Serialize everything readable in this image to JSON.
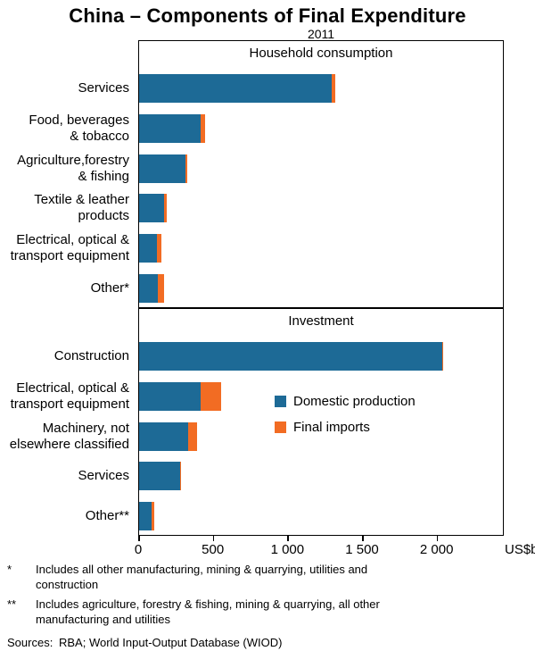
{
  "title": "China – Components of Final Expenditure",
  "subtitle": "2011",
  "unit_label": "US$b",
  "colors": {
    "domestic": "#1d6a96",
    "imports": "#f26c23"
  },
  "legend": [
    {
      "label": "Domestic production",
      "key": "domestic"
    },
    {
      "label": "Final imports",
      "key": "imports"
    }
  ],
  "chart_data": {
    "type": "bar",
    "orientation": "horizontal",
    "stacked": true,
    "grid": false,
    "xlim": [
      0,
      2450
    ],
    "xticks": [
      {
        "value": 0,
        "label": "0"
      },
      {
        "value": 500,
        "label": "500"
      },
      {
        "value": 1000,
        "label": "1 000"
      },
      {
        "value": 1500,
        "label": "1 500"
      },
      {
        "value": 2000,
        "label": "2 000"
      }
    ],
    "panels": [
      {
        "title": "Household consumption",
        "categories": [
          "Services",
          "Food, beverages\n& tobacco",
          "Agriculture,forestry\n& fishing",
          "Textile & leather\nproducts",
          "Electrical, optical &\ntransport equipment",
          "Other*"
        ],
        "series": [
          {
            "name": "Domestic production",
            "values": [
              1290,
              410,
              310,
              165,
              120,
              125
            ]
          },
          {
            "name": "Final imports",
            "values": [
              25,
              35,
              10,
              20,
              30,
              45
            ]
          }
        ]
      },
      {
        "title": "Investment",
        "categories": [
          "Construction",
          "Electrical, optical &\ntransport equipment",
          "Machinery, not\nelsewhere classified",
          "Services",
          "Other**"
        ],
        "series": [
          {
            "name": "Domestic production",
            "values": [
              2030,
              410,
              330,
              275,
              85
            ]
          },
          {
            "name": "Final imports",
            "values": [
              10,
              140,
              60,
              5,
              15
            ]
          }
        ]
      }
    ]
  },
  "footnotes": [
    {
      "marker": "*",
      "text": "Includes all other manufacturing, mining & quarrying, utilities and\nconstruction"
    },
    {
      "marker": "**",
      "text": "Includes agriculture, forestry & fishing, mining & quarrying, all other\nmanufacturing and utilities"
    }
  ],
  "sources_label": "Sources:",
  "sources_text": "RBA; World Input-Output Database (WIOD)"
}
